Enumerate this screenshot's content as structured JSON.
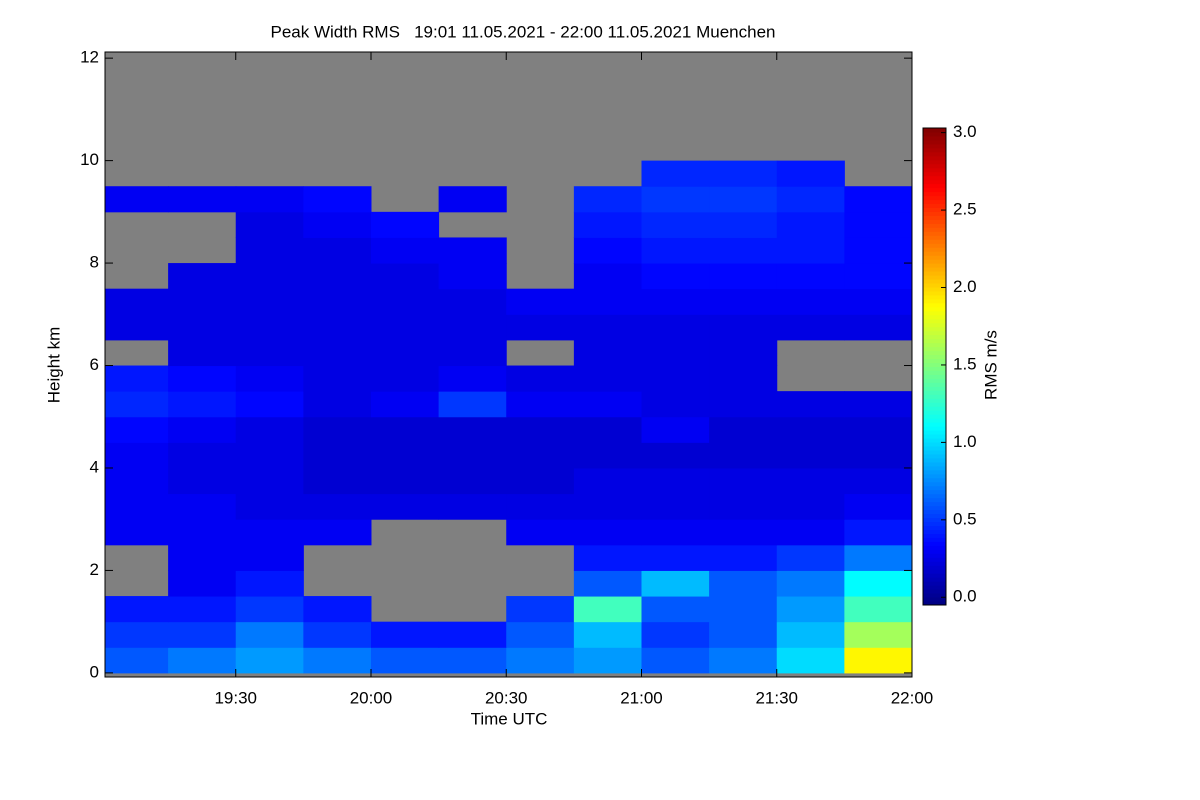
{
  "chart_data": {
    "type": "heatmap",
    "title": "Peak Width RMS   19:01 11.05.2021 - 22:00 11.05.2021 Muenchen",
    "x_label": "Time UTC",
    "y_label": "Height km",
    "colorbar_label": "RMS m/s",
    "x_bins": [
      19.0167,
      19.25,
      19.5,
      19.75,
      20.0,
      20.25,
      20.5,
      20.75,
      21.0,
      21.25,
      21.5,
      21.75,
      22.0
    ],
    "y_bins": [
      0,
      0.5,
      1,
      1.5,
      2,
      2.5,
      3,
      3.5,
      4,
      4.5,
      5,
      5.5,
      6,
      6.5,
      7,
      7.5,
      8,
      8.5,
      9,
      9.5,
      10,
      10.5,
      11,
      11.5,
      12
    ],
    "values": [
      [
        0.6,
        0.7,
        0.8,
        0.7,
        0.6,
        0.6,
        0.7,
        0.8,
        0.6,
        0.7,
        1.0,
        1.9
      ],
      [
        0.5,
        0.5,
        0.7,
        0.5,
        0.4,
        0.4,
        0.6,
        0.9,
        0.5,
        0.6,
        0.9,
        1.6
      ],
      [
        0.4,
        0.4,
        0.5,
        0.4,
        null,
        null,
        0.5,
        1.3,
        0.6,
        0.6,
        0.8,
        1.3
      ],
      [
        null,
        0.3,
        0.4,
        null,
        null,
        null,
        null,
        0.6,
        0.9,
        0.6,
        0.7,
        1.1
      ],
      [
        null,
        0.3,
        0.3,
        null,
        null,
        null,
        null,
        0.4,
        0.4,
        0.4,
        0.5,
        0.7
      ],
      [
        0.3,
        0.3,
        0.3,
        0.3,
        null,
        null,
        0.3,
        0.3,
        0.3,
        0.3,
        0.3,
        0.4
      ],
      [
        0.3,
        0.3,
        0.25,
        0.25,
        0.25,
        0.25,
        0.25,
        0.25,
        0.25,
        0.25,
        0.25,
        0.3
      ],
      [
        0.3,
        0.25,
        0.25,
        0.2,
        0.2,
        0.2,
        0.2,
        0.25,
        0.25,
        0.25,
        0.25,
        0.25
      ],
      [
        0.3,
        0.25,
        0.25,
        0.2,
        0.2,
        0.2,
        0.2,
        0.2,
        0.2,
        0.2,
        0.2,
        0.2
      ],
      [
        0.35,
        0.3,
        0.25,
        0.2,
        0.2,
        0.2,
        0.2,
        0.2,
        0.3,
        0.2,
        0.2,
        0.2
      ],
      [
        0.45,
        0.4,
        0.35,
        0.25,
        0.3,
        0.5,
        0.3,
        0.3,
        0.25,
        0.25,
        0.25,
        0.25
      ],
      [
        0.4,
        0.35,
        0.3,
        0.25,
        0.25,
        0.3,
        0.25,
        0.25,
        0.25,
        0.25,
        null,
        null
      ],
      [
        null,
        0.25,
        0.25,
        0.25,
        0.25,
        0.25,
        null,
        0.25,
        0.25,
        0.25,
        null,
        null
      ],
      [
        0.25,
        0.25,
        0.25,
        0.25,
        0.25,
        0.25,
        0.25,
        0.25,
        0.25,
        0.25,
        0.25,
        0.25
      ],
      [
        0.25,
        0.25,
        0.25,
        0.25,
        0.25,
        0.25,
        0.3,
        0.3,
        0.3,
        0.3,
        0.3,
        0.3
      ],
      [
        null,
        0.25,
        0.25,
        0.25,
        0.25,
        0.3,
        null,
        0.3,
        0.35,
        0.35,
        0.35,
        0.35
      ],
      [
        null,
        null,
        0.25,
        0.25,
        0.3,
        0.3,
        null,
        0.35,
        0.4,
        0.4,
        0.4,
        0.35
      ],
      [
        null,
        null,
        0.25,
        0.3,
        0.35,
        null,
        null,
        0.4,
        0.45,
        0.45,
        0.4,
        0.35
      ],
      [
        0.3,
        0.3,
        0.3,
        0.35,
        null,
        0.3,
        null,
        0.45,
        0.5,
        0.5,
        0.45,
        0.35
      ],
      [
        null,
        null,
        null,
        null,
        null,
        null,
        null,
        null,
        0.45,
        0.45,
        0.4,
        null
      ],
      [
        null,
        null,
        null,
        null,
        null,
        null,
        null,
        null,
        null,
        null,
        null,
        null
      ],
      [
        null,
        null,
        null,
        null,
        null,
        null,
        null,
        null,
        null,
        null,
        null,
        null
      ],
      [
        null,
        null,
        null,
        null,
        null,
        null,
        null,
        null,
        null,
        null,
        null,
        null
      ],
      [
        null,
        null,
        null,
        null,
        null,
        null,
        null,
        null,
        null,
        null,
        null,
        null
      ]
    ],
    "xlim": [
      19.0167,
      22.0
    ],
    "xticks": [
      {
        "value": 19.5,
        "label": "19:30"
      },
      {
        "value": 20.0,
        "label": "20:00"
      },
      {
        "value": 20.5,
        "label": "20:30"
      },
      {
        "value": 21.0,
        "label": "21:00"
      },
      {
        "value": 21.5,
        "label": "21:30"
      },
      {
        "value": 22.0,
        "label": "22:00"
      }
    ],
    "ylim": [
      -0.08,
      12.12
    ],
    "yticks": [
      0,
      2,
      4,
      6,
      8,
      10,
      12
    ],
    "zlim": [
      -0.05,
      3.03
    ],
    "zticks": [
      {
        "value": 0,
        "label": "0.0"
      },
      0.5,
      {
        "value": 1,
        "label": "1.0"
      },
      1.5,
      {
        "value": 2,
        "label": "2.0"
      },
      2.5,
      {
        "value": 3,
        "label": "3.0"
      }
    ],
    "colormap": "jet",
    "missing_color": "#808080"
  }
}
